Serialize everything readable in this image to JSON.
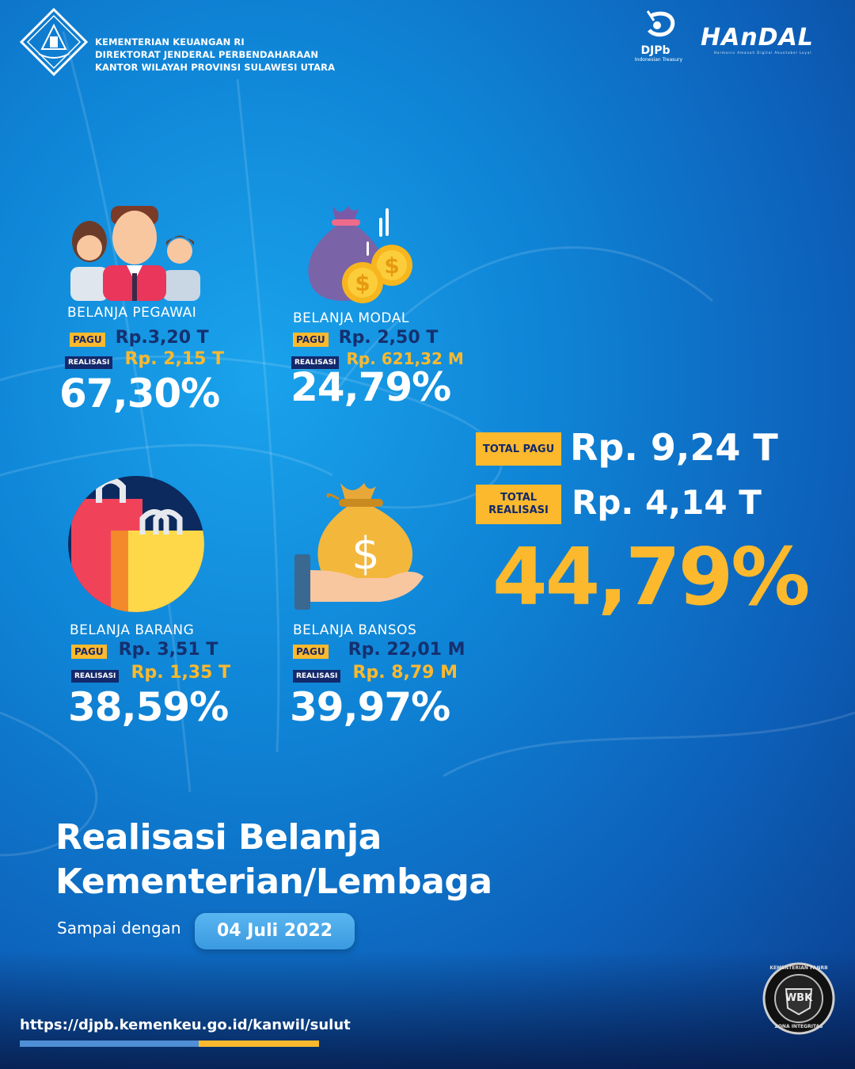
{
  "header": {
    "line1": "KEMENTERIAN KEUANGAN RI",
    "line2": "DIREKTORAT JENDERAL PERBENDAHARAAN",
    "line3": "KANTOR WILAYAH PROVINSI SULAWESI UTARA",
    "djpb_label": "DJPb",
    "djpb_sub": "Indonesian Treasury",
    "handal": "HAnDAL",
    "handal_sub": "Harmonis   Amanah   Digital   Akuntabel   Loyal"
  },
  "tags": {
    "pagu": "PAGU",
    "realisasi": "REALISASI"
  },
  "cards": [
    {
      "title": "BELANJA PEGAWAI",
      "pagu": "Rp.3,20 T",
      "realisasi": "Rp. 2,15 T",
      "percent": "67,30%",
      "icon": "employees-icon"
    },
    {
      "title": "BELANJA MODAL",
      "pagu": "Rp. 2,50 T",
      "realisasi": "Rp. 621,32 M",
      "percent": "24,79%",
      "icon": "money-bag-coins-icon"
    },
    {
      "title": "BELANJA BARANG",
      "pagu": "Rp. 3,51 T",
      "realisasi": "Rp. 1,35 T",
      "percent": "38,59%",
      "icon": "shopping-bags-icon"
    },
    {
      "title": "BELANJA BANSOS",
      "pagu": "Rp. 22,01 M",
      "realisasi": "Rp. 8,79 M",
      "percent": "39,97%",
      "icon": "hand-money-bag-icon"
    }
  ],
  "total": {
    "pagu_label": "TOTAL PAGU",
    "pagu_value": "Rp. 9,24 T",
    "realisasi_label_1": "TOTAL",
    "realisasi_label_2": "REALISASI",
    "realisasi_value": "Rp. 4,14 T",
    "percent": "44,79%"
  },
  "title": {
    "line1": "Realisasi Belanja",
    "line2": "Kementerian/Lembaga"
  },
  "subtitle": {
    "label": "Sampai dengan",
    "date": "04 Juli 2022"
  },
  "footer": {
    "url": "https://djpb.kemenkeu.go.id/kanwil/sulut"
  },
  "badge": {
    "top": "KEMENTERIAN PANRB",
    "center": "WBK",
    "bottom": "ZONA INTEGRITAS"
  },
  "colors": {
    "accent_yellow": "#fcb92d",
    "navy": "#13296b",
    "background_blue": "#0f84d6"
  }
}
